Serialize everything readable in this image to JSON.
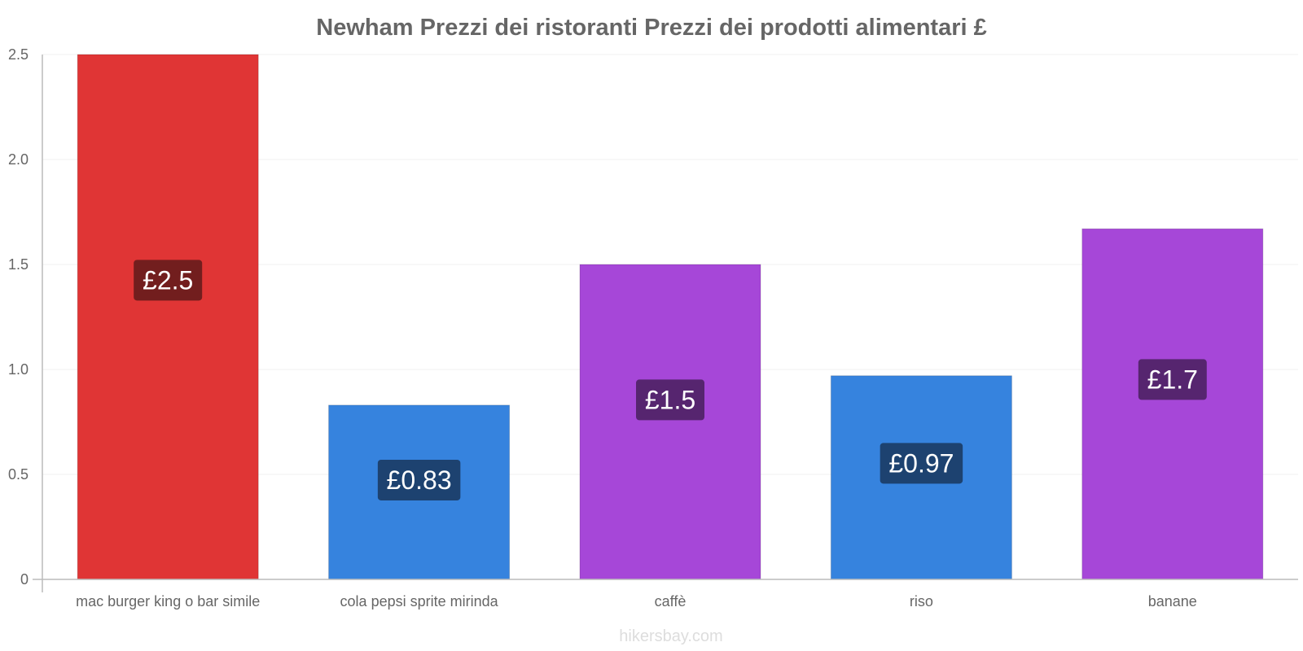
{
  "chart_data": {
    "type": "bar",
    "title": "Newham Prezzi dei ristoranti Prezzi dei prodotti alimentari £",
    "xlabel": "",
    "ylabel": "",
    "ylim": [
      0,
      2.5
    ],
    "yticks": [
      0,
      0.5,
      1.0,
      1.5,
      2.0,
      2.5
    ],
    "ytick_labels": [
      "0",
      "0.5",
      "1.0",
      "1.5",
      "2.0",
      "2.5"
    ],
    "grid": true,
    "categories": [
      "mac burger king o bar simile",
      "cola pepsi sprite mirinda",
      "caffè",
      "riso",
      "banane"
    ],
    "values": [
      2.5,
      0.83,
      1.5,
      0.97,
      1.67
    ],
    "data_labels": [
      "£2.5",
      "£0.83",
      "£1.5",
      "£0.97",
      "£1.7"
    ],
    "bar_colors": [
      "#e03535",
      "#3683de",
      "#a647d8",
      "#3683de",
      "#a647d8"
    ],
    "label_colors": [
      "#721e1e",
      "#1d4270",
      "#56256f",
      "#1d4270",
      "#56256f"
    ]
  },
  "watermark": "hikersbay.com",
  "colors": {
    "axis": "#bbbbbb",
    "grid": "#f2f2f2",
    "text": "#666666"
  }
}
